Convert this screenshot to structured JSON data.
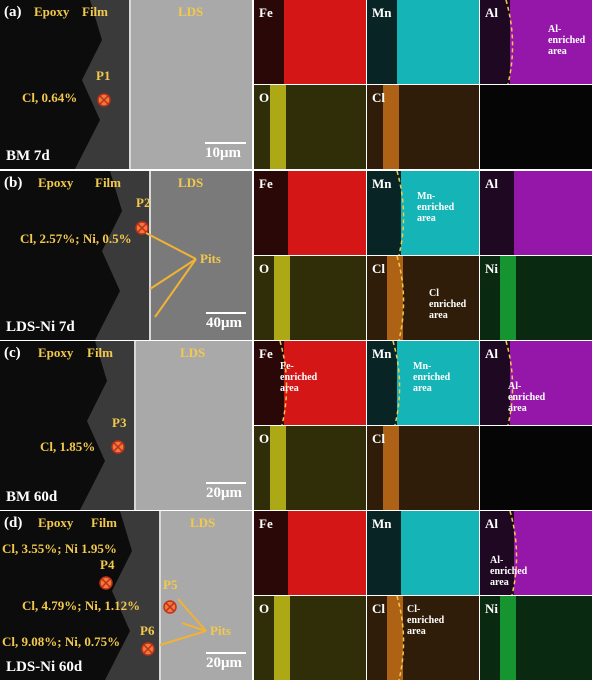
{
  "panels": [
    {
      "label": "(a)",
      "sample": "BM 7d",
      "scale": "10μm",
      "regions": [
        "Epoxy",
        "Film",
        "LDS"
      ],
      "points": [
        {
          "name": "P1",
          "composition": "Cl, 0.64%"
        }
      ],
      "maps": [
        {
          "element": "Fe",
          "color": "#ff1a1a"
        },
        {
          "element": "Mn",
          "color": "#19d8dc"
        },
        {
          "element": "Al",
          "color": "#b21ccc",
          "note": [
            "Al-",
            "enriched",
            "area"
          ]
        },
        {
          "element": "O",
          "color": "#d8d21a"
        },
        {
          "element": "Cl",
          "color": "#d87a1a"
        }
      ]
    },
    {
      "label": "(b)",
      "sample": "LDS-Ni 7d",
      "scale": "40μm",
      "regions": [
        "Epoxy",
        "Film",
        "LDS"
      ],
      "pits": "Pits",
      "points": [
        {
          "name": "P2",
          "composition": "Cl, 2.57%; Ni, 0.5%"
        }
      ],
      "maps": [
        {
          "element": "Fe",
          "color": "#ff1a1a"
        },
        {
          "element": "Mn",
          "color": "#19d8dc",
          "note": [
            "Mn-",
            "enriched",
            "area"
          ]
        },
        {
          "element": "Al",
          "color": "#b21ccc"
        },
        {
          "element": "O",
          "color": "#d8d21a"
        },
        {
          "element": "Cl",
          "color": "#d87a1a",
          "note": [
            "Cl",
            "enriched",
            "area"
          ]
        },
        {
          "element": "Ni",
          "color": "#1ab83a"
        }
      ]
    },
    {
      "label": "(c)",
      "sample": "BM 60d",
      "scale": "20μm",
      "regions": [
        "Epoxy",
        "Film",
        "LDS"
      ],
      "points": [
        {
          "name": "P3",
          "composition": "Cl, 1.85%"
        }
      ],
      "maps": [
        {
          "element": "Fe",
          "color": "#ff1a1a",
          "note": [
            "Fe-",
            "enriched",
            "area"
          ]
        },
        {
          "element": "Mn",
          "color": "#19d8dc",
          "note": [
            "Mn-",
            "enriched",
            "area"
          ]
        },
        {
          "element": "Al",
          "color": "#b21ccc",
          "note": [
            "Al-",
            "enriched",
            "area"
          ]
        },
        {
          "element": "O",
          "color": "#d8d21a"
        },
        {
          "element": "Cl",
          "color": "#d87a1a"
        }
      ]
    },
    {
      "label": "(d)",
      "sample": "LDS-Ni 60d",
      "scale": "20μm",
      "regions": [
        "Epoxy",
        "Film",
        "LDS"
      ],
      "pits": "Pits",
      "points": [
        {
          "name": "P4",
          "composition": "Cl, 3.55%; Ni 1.95%"
        },
        {
          "name": "P5",
          "composition": "Cl, 4.79%; Ni, 1.12%"
        },
        {
          "name": "P6",
          "composition": "Cl, 9.08%; Ni, 0.75%"
        }
      ],
      "maps": [
        {
          "element": "Fe",
          "color": "#ff1a1a"
        },
        {
          "element": "Mn",
          "color": "#19d8dc"
        },
        {
          "element": "Al",
          "color": "#b21ccc",
          "note": [
            "Al-",
            "enriched",
            "area"
          ]
        },
        {
          "element": "O",
          "color": "#d8d21a"
        },
        {
          "element": "Cl",
          "color": "#d87a1a",
          "note": [
            "Cl-",
            "enriched",
            "area"
          ]
        },
        {
          "element": "Ni",
          "color": "#1ab83a"
        }
      ]
    }
  ]
}
